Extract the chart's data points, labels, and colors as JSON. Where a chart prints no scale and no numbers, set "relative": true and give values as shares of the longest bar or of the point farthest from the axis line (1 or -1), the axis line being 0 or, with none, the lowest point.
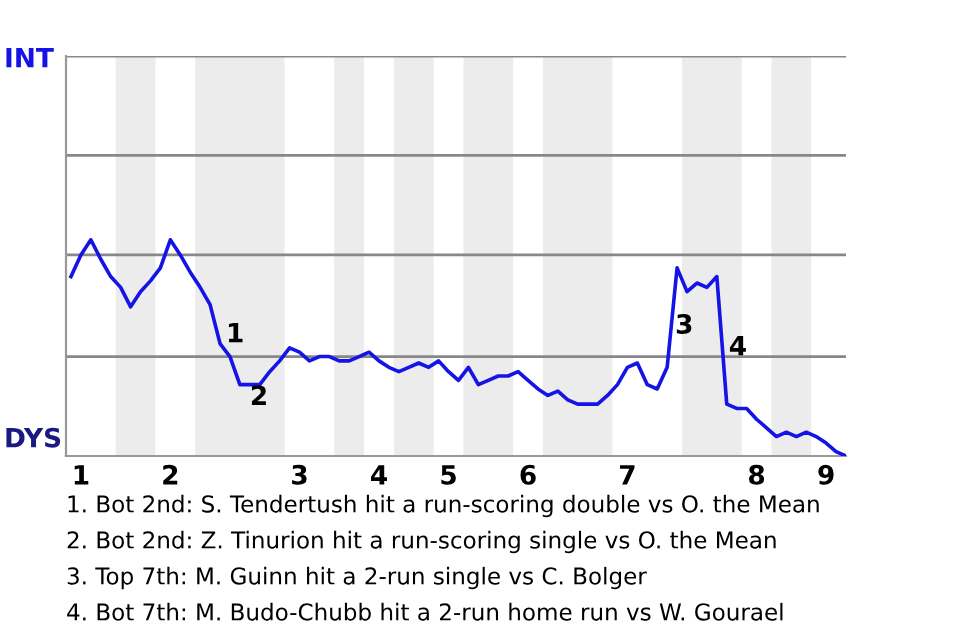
{
  "chart_data": {
    "type": "line",
    "relative": true,
    "categories": [
      null,
      "1",
      null,
      null,
      null,
      null,
      null,
      null,
      null,
      null,
      "2",
      null,
      null,
      null,
      null,
      null,
      null,
      null,
      null,
      null,
      null,
      null,
      null,
      "3",
      null,
      null,
      null,
      null,
      null,
      null,
      null,
      "4",
      null,
      null,
      null,
      null,
      null,
      null,
      "5",
      null,
      null,
      null,
      null,
      null,
      null,
      null,
      "6",
      null,
      null,
      null,
      null,
      null,
      null,
      null,
      null,
      null,
      "7",
      null,
      null,
      null,
      null,
      null,
      null,
      null,
      null,
      null,
      null,
      null,
      null,
      "8",
      null,
      null,
      null,
      null,
      null,
      null,
      "9",
      null,
      null
    ],
    "series": [
      {
        "color": "#1414e6",
        "values": [
          0.83,
          0.93,
          1,
          0.91,
          0.83,
          0.78,
          0.69,
          0.76,
          0.81,
          0.87,
          1,
          0.93,
          0.85,
          0.78,
          0.7,
          0.52,
          0.46,
          0.33,
          0.33,
          0.33,
          0.39,
          0.44,
          0.5,
          0.48,
          0.44,
          0.46,
          0.46,
          0.44,
          0.44,
          0.46,
          0.48,
          0.44,
          0.41,
          0.39,
          0.41,
          0.43,
          0.41,
          0.44,
          0.39,
          0.35,
          0.41,
          0.33,
          0.35,
          0.37,
          0.37,
          0.39,
          0.35,
          0.31,
          0.28,
          0.3,
          0.26,
          0.24,
          0.24,
          0.24,
          0.28,
          0.33,
          0.41,
          0.43,
          0.33,
          0.31,
          0.41,
          0.87,
          0.76,
          0.8,
          0.78,
          0.83,
          0.24,
          0.22,
          0.22,
          0.17,
          0.13,
          0.09,
          0.11,
          0.09,
          0.11,
          0.09,
          0.06,
          0.02,
          0
        ]
      }
    ],
    "ref_lines": [
      {
        "axis": "y",
        "value": 0.46,
        "color": "#888888"
      },
      {
        "axis": "y",
        "value": 0.93,
        "color": "#888888"
      },
      {
        "axis": "y",
        "value": 1.39,
        "color": "#888888"
      },
      {
        "axis": "y",
        "value": 1.85,
        "color": "#888888"
      }
    ],
    "marker": "none",
    "line_style": "solid",
    "legend": false,
    "annotations": [
      "INT",
      "DYS",
      "1",
      "2",
      "3",
      "4",
      "1. Bot 2nd: S. Tendertush hit a run-scoring double vs O. the Mean",
      "2. Bot 2nd: Z. Tinurion hit a run-scoring single vs O. the Mean",
      "3. Top 7th: M. Guinn hit a 2-run single vs C. Bolger",
      "4. Bot 7th: M. Budo-Chubb hit a 2-run home run vs W. Gourael"
    ]
  }
}
